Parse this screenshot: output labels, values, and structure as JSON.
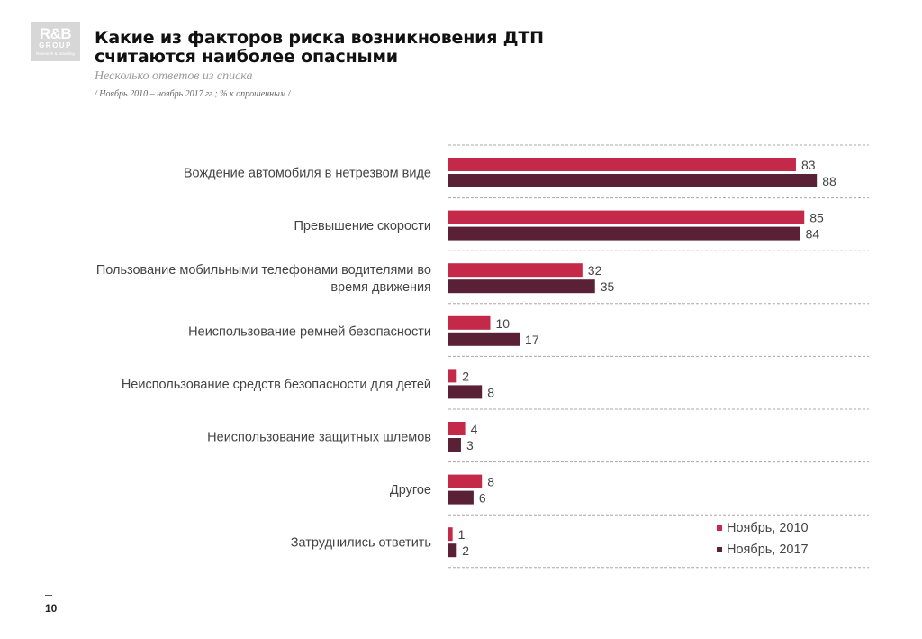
{
  "logo": {
    "line1": "R&B",
    "line2": "GROUP",
    "line3": "Research & Branding"
  },
  "header": {
    "title_line1": "Какие из факторов риска возникновения ДТП",
    "title_line2": "считаются наиболее опасными",
    "subtitle": "Несколько ответов из списка",
    "note": "/ Ноябрь 2010 – ноябрь 2017 гг.; % к опрошенным /"
  },
  "page_number": "10",
  "colors": {
    "series_2010": "#c4294a",
    "series_2017": "#5a2136",
    "grid": "#a8a8a8",
    "label": "#444444"
  },
  "chart_data": {
    "type": "bar",
    "orientation": "horizontal",
    "categories": [
      [
        "Вождение автомобиля в нетрезвом виде"
      ],
      [
        "Превышение скорости"
      ],
      [
        "Пользование мобильными телефонами водителями во",
        "время движения"
      ],
      [
        "Неиспользование ремней безопасности"
      ],
      [
        "Неиспользование средств безопасности для детей"
      ],
      [
        "Неиспользование защитных шлемов"
      ],
      [
        "Другое"
      ],
      [
        "Затруднились ответить"
      ]
    ],
    "series": [
      {
        "name": "Ноябрь, 2010",
        "values": [
          83,
          85,
          32,
          10,
          2,
          4,
          8,
          1
        ]
      },
      {
        "name": "Ноябрь, 2017",
        "values": [
          88,
          84,
          35,
          17,
          8,
          3,
          6,
          2
        ]
      }
    ],
    "xlim": [
      0,
      100
    ],
    "grid": "dashed horizontal separators",
    "legend_position": "bottom-right"
  }
}
